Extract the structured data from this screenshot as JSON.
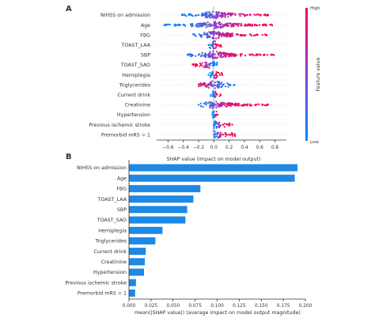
{
  "panels": {
    "a_label": "A",
    "b_label": "B"
  },
  "colors": {
    "high": "#ff0052",
    "low": "#008bfb",
    "mid": "#8d3ccc",
    "bar": "#1e88e5",
    "axis": "#333333"
  },
  "chart_data": [
    {
      "type": "scatter",
      "subtype": "beeswarm",
      "xlabel": "SHAP value (impact on model output)",
      "xlim": [
        -0.75,
        0.95
      ],
      "xticks": [
        -0.6,
        -0.4,
        -0.2,
        0.0,
        0.2,
        0.4,
        0.6,
        0.8
      ],
      "xtick_labels": [
        "−0.6",
        "−0.4",
        "−0.2",
        "0.0",
        "0.2",
        "0.4",
        "0.6",
        "0.8"
      ],
      "zero_line": true,
      "colorbar": {
        "label": "Feature value",
        "high_label": "High",
        "low_label": "Low"
      },
      "features": [
        {
          "name": "NIHSS on admission",
          "range": [
            -0.42,
            0.72
          ],
          "points": [
            {
              "x": -0.38,
              "v": 0.05
            },
            {
              "x": -0.3,
              "v": 0.1
            },
            {
              "x": -0.2,
              "v": 0.15
            },
            {
              "x": -0.1,
              "v": 0.25
            },
            {
              "x": -0.03,
              "v": 0.35
            },
            {
              "x": 0.05,
              "v": 0.5
            },
            {
              "x": 0.15,
              "v": 0.65
            },
            {
              "x": 0.28,
              "v": 0.75
            },
            {
              "x": 0.4,
              "v": 0.85
            },
            {
              "x": 0.55,
              "v": 0.9
            },
            {
              "x": 0.7,
              "v": 1.0
            }
          ]
        },
        {
          "name": "Age",
          "range": [
            -0.65,
            0.78
          ],
          "points": [
            {
              "x": -0.65,
              "v": 0.0
            },
            {
              "x": -0.48,
              "v": 0.05
            },
            {
              "x": -0.3,
              "v": 0.15
            },
            {
              "x": -0.15,
              "v": 0.3
            },
            {
              "x": -0.02,
              "v": 0.45
            },
            {
              "x": 0.12,
              "v": 0.6
            },
            {
              "x": 0.25,
              "v": 0.75
            },
            {
              "x": 0.42,
              "v": 0.85
            },
            {
              "x": 0.6,
              "v": 0.95
            },
            {
              "x": 0.76,
              "v": 1.0
            }
          ]
        },
        {
          "name": "FBG",
          "range": [
            -0.28,
            0.7
          ],
          "points": [
            {
              "x": -0.25,
              "v": 0.1
            },
            {
              "x": -0.18,
              "v": 0.15
            },
            {
              "x": -0.08,
              "v": 0.3
            },
            {
              "x": 0.0,
              "v": 0.5
            },
            {
              "x": 0.08,
              "v": 0.65
            },
            {
              "x": 0.2,
              "v": 0.8
            },
            {
              "x": 0.35,
              "v": 0.9
            },
            {
              "x": 0.55,
              "v": 0.95
            },
            {
              "x": 0.68,
              "v": 1.0
            }
          ]
        },
        {
          "name": "TOAST_LAA",
          "range": [
            -0.08,
            0.1
          ],
          "points": [
            {
              "x": -0.07,
              "v": 0.0
            },
            {
              "x": -0.04,
              "v": 0.0
            },
            {
              "x": 0.03,
              "v": 1.0
            },
            {
              "x": 0.06,
              "v": 1.0
            },
            {
              "x": 0.09,
              "v": 1.0
            }
          ]
        },
        {
          "name": "SBP",
          "range": [
            -0.35,
            0.8
          ],
          "points": [
            {
              "x": -0.3,
              "v": 0.1
            },
            {
              "x": -0.2,
              "v": 0.2
            },
            {
              "x": -0.12,
              "v": 0.3
            },
            {
              "x": -0.02,
              "v": 0.5
            },
            {
              "x": 0.06,
              "v": 0.65
            },
            {
              "x": 0.15,
              "v": 0.8
            },
            {
              "x": 0.3,
              "v": 0.9
            },
            {
              "x": 0.5,
              "v": 0.95
            },
            {
              "x": 0.65,
              "v": 1.0
            },
            {
              "x": 0.78,
              "v": 1.0
            }
          ]
        },
        {
          "name": "TOAST_SAO",
          "range": [
            -0.28,
            0.05
          ],
          "points": [
            {
              "x": -0.27,
              "v": 1.0
            },
            {
              "x": -0.22,
              "v": 1.0
            },
            {
              "x": -0.17,
              "v": 1.0
            },
            {
              "x": 0.01,
              "v": 0.0
            },
            {
              "x": 0.04,
              "v": 0.0
            }
          ]
        },
        {
          "name": "Hemiplegia",
          "range": [
            -0.08,
            0.12
          ],
          "points": [
            {
              "x": -0.07,
              "v": 0.0
            },
            {
              "x": -0.03,
              "v": 0.0
            },
            {
              "x": 0.03,
              "v": 1.0
            },
            {
              "x": 0.08,
              "v": 1.0
            },
            {
              "x": 0.11,
              "v": 1.0
            }
          ]
        },
        {
          "name": "Triglycerides",
          "range": [
            -0.2,
            0.28
          ],
          "points": [
            {
              "x": -0.2,
              "v": 0.9
            },
            {
              "x": -0.12,
              "v": 0.8
            },
            {
              "x": -0.05,
              "v": 0.6
            },
            {
              "x": 0.0,
              "v": 0.4
            },
            {
              "x": 0.05,
              "v": 0.25
            },
            {
              "x": 0.12,
              "v": 0.15
            },
            {
              "x": 0.2,
              "v": 0.1
            },
            {
              "x": 0.27,
              "v": 0.05
            }
          ]
        },
        {
          "name": "Current drink",
          "range": [
            -0.05,
            0.1
          ],
          "points": [
            {
              "x": -0.04,
              "v": 0.0
            },
            {
              "x": -0.01,
              "v": 0.0
            },
            {
              "x": 0.04,
              "v": 1.0
            },
            {
              "x": 0.09,
              "v": 1.0
            }
          ]
        },
        {
          "name": "Creatinine",
          "range": [
            -0.2,
            0.72
          ],
          "points": [
            {
              "x": -0.2,
              "v": 0.05
            },
            {
              "x": -0.1,
              "v": 0.15
            },
            {
              "x": -0.03,
              "v": 0.3
            },
            {
              "x": 0.02,
              "v": 0.5
            },
            {
              "x": 0.1,
              "v": 0.7
            },
            {
              "x": 0.2,
              "v": 0.85
            },
            {
              "x": 0.3,
              "v": 0.9
            },
            {
              "x": 0.55,
              "v": 1.0
            },
            {
              "x": 0.64,
              "v": 1.0
            },
            {
              "x": 0.71,
              "v": 1.0
            }
          ]
        },
        {
          "name": "Hypertension",
          "range": [
            -0.03,
            0.06
          ],
          "points": [
            {
              "x": -0.02,
              "v": 0.0
            },
            {
              "x": 0.0,
              "v": 0.0
            },
            {
              "x": 0.03,
              "v": 1.0
            },
            {
              "x": 0.05,
              "v": 1.0
            }
          ]
        },
        {
          "name": "Previous ischemic stroke",
          "range": [
            -0.01,
            0.25
          ],
          "points": [
            {
              "x": 0.0,
              "v": 0.0
            },
            {
              "x": 0.01,
              "v": 0.0
            },
            {
              "x": 0.12,
              "v": 1.0
            },
            {
              "x": 0.18,
              "v": 1.0
            },
            {
              "x": 0.24,
              "v": 1.0
            }
          ]
        },
        {
          "name": "Premorbid mRS = 1",
          "range": [
            -0.01,
            0.28
          ],
          "points": [
            {
              "x": 0.0,
              "v": 0.0
            },
            {
              "x": 0.01,
              "v": 0.0
            },
            {
              "x": 0.12,
              "v": 1.0
            },
            {
              "x": 0.2,
              "v": 1.0
            },
            {
              "x": 0.27,
              "v": 1.0
            }
          ]
        }
      ]
    },
    {
      "type": "bar",
      "orientation": "horizontal",
      "xlabel": "mean(|SHAP value|) (average impact on model output magnitude)",
      "xlim": [
        0,
        0.2
      ],
      "xticks": [
        0.0,
        0.025,
        0.05,
        0.075,
        0.1,
        0.125,
        0.15,
        0.175,
        0.2
      ],
      "xtick_labels": [
        "0.000",
        "0.025",
        "0.050",
        "0.075",
        "0.100",
        "0.125",
        "0.150",
        "0.175",
        "0.200"
      ],
      "categories": [
        "NIHSS on admission",
        "Age",
        "FBG",
        "TOAST_LAA",
        "SBP",
        "TOAST_SAO",
        "Hemiplegia",
        "Triglycerides",
        "Current drink",
        "Creatinine",
        "Hypertension",
        "Previous ischemic stroke",
        "Premorbid mRS = 1"
      ],
      "values": [
        0.191,
        0.188,
        0.081,
        0.073,
        0.066,
        0.064,
        0.038,
        0.03,
        0.019,
        0.018,
        0.017,
        0.008,
        0.007
      ]
    }
  ]
}
